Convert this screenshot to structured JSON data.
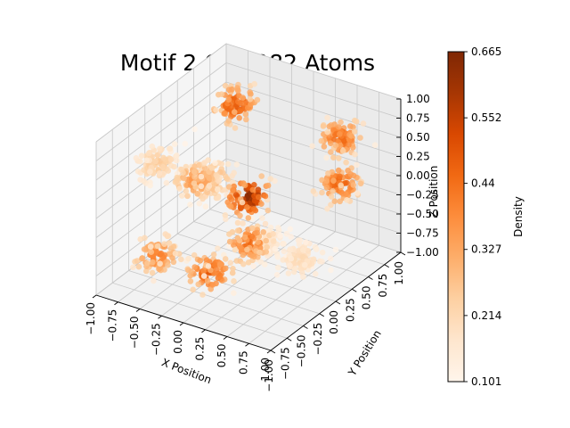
{
  "chart_data": {
    "type": "scatter",
    "projection": "3d",
    "title": "Motif 2 Cu 1982 Atoms",
    "xlabel": "X Position",
    "ylabel": "Y Position",
    "zlabel": "Z Position",
    "xlim": [
      -1.0,
      1.0
    ],
    "ylim": [
      -1.0,
      1.0
    ],
    "zlim": [
      -1.0,
      1.0
    ],
    "x_ticks": [
      "−1.00",
      "−0.75",
      "−0.50",
      "−0.25",
      "0.00",
      "0.25",
      "0.50",
      "0.75",
      "1.00"
    ],
    "y_ticks": [
      "−1.00",
      "−0.75",
      "−0.50",
      "−0.25",
      "0.00",
      "0.25",
      "0.50",
      "0.75",
      "1.00"
    ],
    "z_ticks": [
      "−1.00",
      "−0.75",
      "−0.50",
      "−0.25",
      "0.00",
      "0.25",
      "0.50",
      "0.75",
      "1.00"
    ],
    "grid": true,
    "colormap": "Oranges",
    "colorbar": {
      "label": "Density",
      "min": 0.101,
      "max": 0.665,
      "ticks": [
        "0.101",
        "0.214",
        "0.327",
        "0.44",
        "0.552",
        "0.665"
      ]
    },
    "clusters": [
      {
        "center": [
          0.0,
          0.0,
          0.0
        ],
        "density": 0.66
      },
      {
        "center": [
          -0.6,
          0.6,
          0.6
        ],
        "density": 0.52
      },
      {
        "center": [
          0.6,
          0.6,
          0.0
        ],
        "density": 0.48
      },
      {
        "center": [
          -0.6,
          -0.6,
          0.6
        ],
        "density": 0.26
      },
      {
        "center": [
          -0.6,
          0.0,
          0.0
        ],
        "density": 0.38
      },
      {
        "center": [
          0.0,
          -0.6,
          0.6
        ],
        "density": 0.34
      },
      {
        "center": [
          -0.6,
          -0.6,
          -0.6
        ],
        "density": 0.42
      },
      {
        "center": [
          0.0,
          0.0,
          -0.6
        ],
        "density": 0.46
      },
      {
        "center": [
          0.6,
          0.0,
          -0.6
        ],
        "density": 0.22
      },
      {
        "center": [
          0.0,
          -0.6,
          -0.6
        ],
        "density": 0.5
      },
      {
        "center": [
          0.6,
          0.6,
          0.6
        ],
        "density": 0.47
      },
      {
        "center": [
          0.6,
          -0.6,
          0.0
        ],
        "density": 0.2
      }
    ]
  }
}
